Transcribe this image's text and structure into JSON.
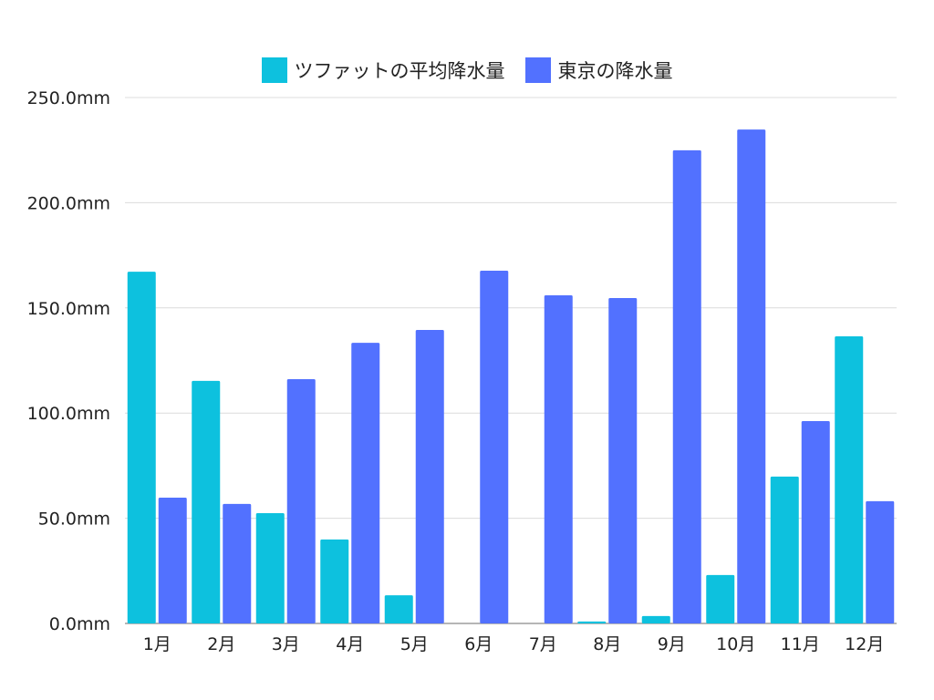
{
  "chart_data": {
    "type": "bar",
    "title": "",
    "xlabel": "",
    "ylabel": "",
    "categories": [
      "1月",
      "2月",
      "3月",
      "4月",
      "5月",
      "6月",
      "7月",
      "8月",
      "9月",
      "10月",
      "11月",
      "12月"
    ],
    "series": [
      {
        "name": "ツファットの平均降水量",
        "color": "#0dc1de",
        "values": [
          167.2,
          115.3,
          52.4,
          39.9,
          13.4,
          0,
          0,
          0.9,
          3.5,
          23.0,
          69.8,
          136.5
        ]
      },
      {
        "name": "東京の降水量",
        "color": "#5271ff",
        "values": [
          59.8,
          56.8,
          116.1,
          133.4,
          139.5,
          167.7,
          156.0,
          154.7,
          224.9,
          234.8,
          96.2,
          58.1
        ]
      }
    ],
    "ylim": [
      0,
      250
    ],
    "yticks": [
      0,
      50,
      100,
      150,
      200,
      250
    ],
    "ytick_labels": [
      "0.0mm",
      "50.0mm",
      "100.0mm",
      "150.0mm",
      "200.0mm",
      "250.0mm"
    ],
    "grid": true,
    "legend_position": "top-center"
  }
}
